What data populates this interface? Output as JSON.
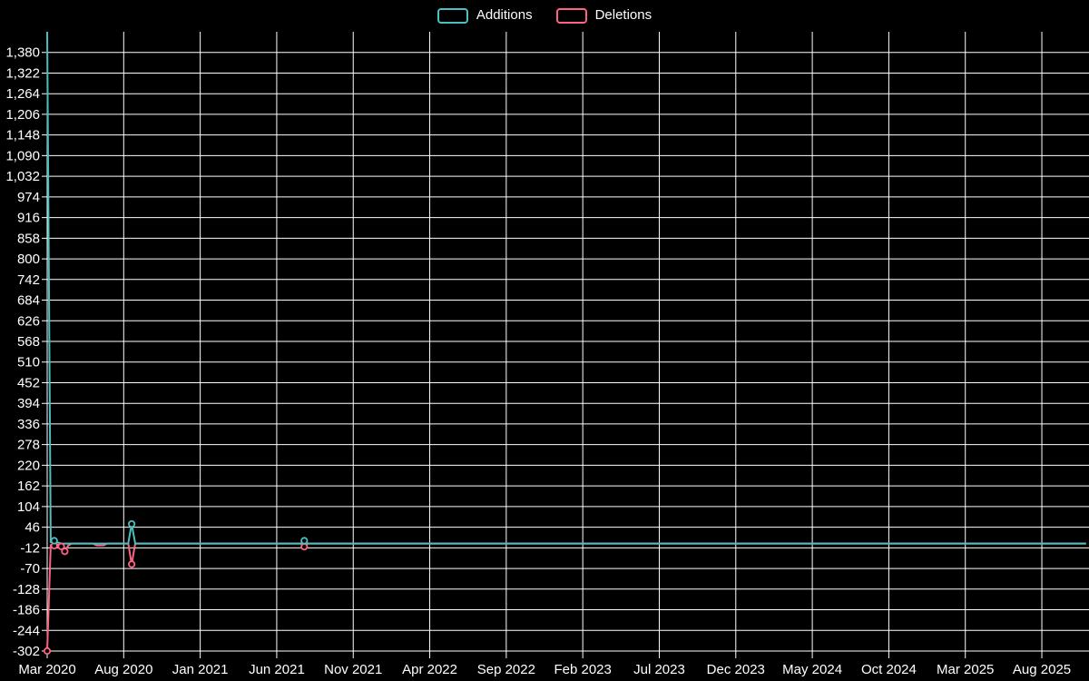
{
  "legend": {
    "items": [
      {
        "label": "Additions",
        "color": "#4BC0C0"
      },
      {
        "label": "Deletions",
        "color": "#FF6384"
      }
    ]
  },
  "chart_data": {
    "type": "line",
    "title": "",
    "xlabel": "",
    "ylabel": "",
    "background_color": "#000000",
    "grid_color": "#ffffff",
    "label_color": "#ffffff",
    "grid": true,
    "legend_position": "top-center",
    "x_tick_labels": [
      "Mar 2020",
      "Aug 2020",
      "Jan 2021",
      "Jun 2021",
      "Nov 2021",
      "Apr 2022",
      "Sep 2022",
      "Feb 2023",
      "Jul 2023",
      "Dec 2023",
      "May 2024",
      "Oct 2024",
      "Mar 2025",
      "Aug 2025"
    ],
    "y_tick_values": [
      -302,
      -244,
      -186,
      -128,
      -70,
      -12,
      46,
      104,
      162,
      220,
      278,
      336,
      394,
      452,
      510,
      568,
      626,
      684,
      742,
      800,
      858,
      916,
      974,
      1032,
      1090,
      1148,
      1206,
      1264,
      1322,
      1380
    ],
    "y_tick_labels": [
      "-302",
      "-244",
      "-186",
      "-128",
      "-70",
      "-12",
      "46",
      "104",
      "162",
      "220",
      "278",
      "336",
      "394",
      "452",
      "510",
      "568",
      "626",
      "684",
      "742",
      "800",
      "858",
      "916",
      "974",
      "1,032",
      "1,090",
      "1,148",
      "1,206",
      "1,264",
      "1,322",
      "1,380"
    ],
    "ylim": [
      -302,
      1438
    ],
    "x_unit": "weeks since Mar 2020",
    "weeks_total": 296,
    "series": [
      {
        "name": "Additions",
        "color": "#4BC0C0",
        "baseline_value": 0,
        "nonzero_points": {
          "0": 1438,
          "1": 4,
          "2": 8,
          "3": 3,
          "24": 55,
          "73": 8
        }
      },
      {
        "name": "Deletions",
        "color": "#FF6384",
        "baseline_value": 0,
        "nonzero_points": {
          "0": -302,
          "1": -4,
          "2": -6,
          "3": -3,
          "4": -8,
          "5": -22,
          "6": -5,
          "14": -5,
          "15": -5,
          "16": -5,
          "24": -58,
          "73": -9
        }
      }
    ]
  }
}
